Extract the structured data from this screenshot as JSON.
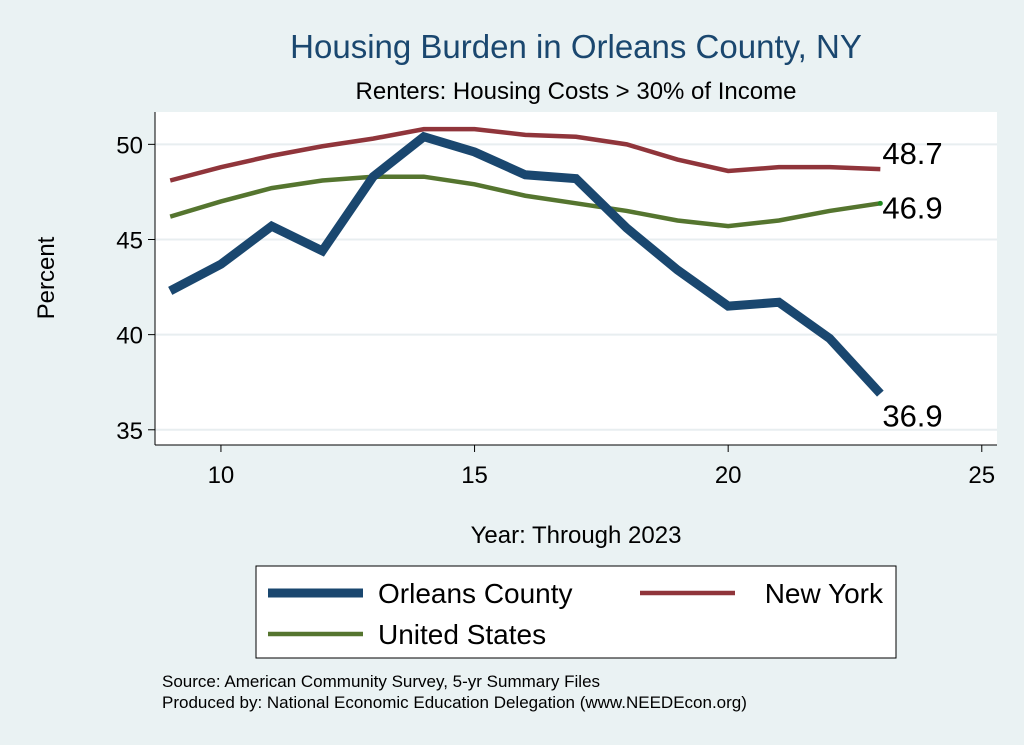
{
  "chart_data": {
    "type": "line",
    "title": "Housing Burden in Orleans County, NY",
    "subtitle": "Renters: Housing Costs > 30% of Income",
    "xlabel": "Year: Through 2023",
    "ylabel": "Percent",
    "xlim": [
      8.7,
      25.3
    ],
    "ylim": [
      34.2,
      51.7
    ],
    "xticks": [
      10,
      15,
      20,
      25
    ],
    "yticks": [
      35,
      40,
      45,
      50
    ],
    "grid": true,
    "legend_position": "bottom",
    "x": [
      9,
      10,
      11,
      12,
      13,
      14,
      15,
      16,
      17,
      18,
      19,
      20,
      21,
      22,
      23
    ],
    "series": [
      {
        "name": "Orleans County",
        "color": "#1a476f",
        "values": [
          42.3,
          43.7,
          45.7,
          44.4,
          48.3,
          50.4,
          49.6,
          48.4,
          48.2,
          45.6,
          43.4,
          41.5,
          41.7,
          39.8,
          36.9
        ],
        "end_label": "36.9"
      },
      {
        "name": "New York",
        "color": "#90353b",
        "values": [
          48.1,
          48.8,
          49.4,
          49.9,
          50.3,
          50.8,
          50.8,
          50.5,
          50.4,
          50.0,
          49.2,
          48.6,
          48.8,
          48.8,
          48.7
        ],
        "end_label": "48.7"
      },
      {
        "name": "United States",
        "color": "#55752f",
        "values": [
          46.2,
          47.0,
          47.7,
          48.1,
          48.3,
          48.3,
          47.9,
          47.3,
          46.9,
          46.5,
          46.0,
          45.7,
          46.0,
          46.5,
          46.9
        ],
        "end_label": "46.9"
      }
    ],
    "source_note": "Source: American Community Survey, 5-yr Summary Files",
    "producer_note": "Produced by: National Economic Education Delegation (www.NEEDEcon.org)"
  }
}
